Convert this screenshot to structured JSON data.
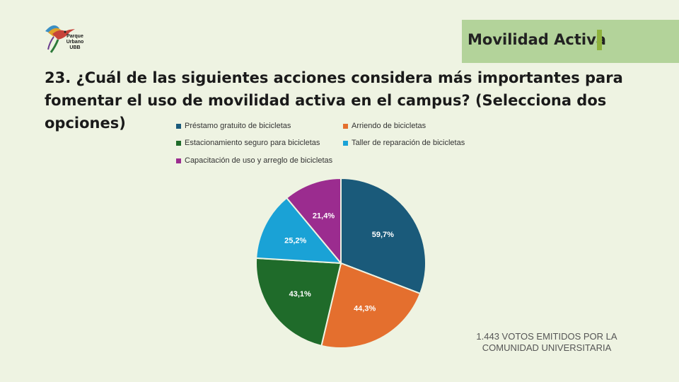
{
  "header": {
    "logo_lines": [
      "Parque",
      "Urbano",
      "UBB"
    ],
    "banner_title": "Movilidad Activa"
  },
  "question": "23. ¿Cuál de las siguientes acciones considera más importantes para fomentar el uso de movilidad activa en el campus? (Selecciona dos opciones)",
  "chart_data": {
    "type": "pie",
    "categories": [
      "Préstamo gratuito de bicicletas",
      "Arriendo de bicicletas",
      "Estacionamiento seguro para bicicletas",
      "Taller de reparación de bicicletas",
      "Capacitación de uso y arreglo de bicicletas"
    ],
    "values": [
      59.7,
      44.3,
      43.1,
      25.2,
      21.4
    ],
    "data_labels": [
      "59,7%",
      "44,3%",
      "43,1%",
      "25,2%",
      "21,4%"
    ],
    "colors": [
      "#1a5a7a",
      "#e46f2e",
      "#1f6b2a",
      "#1aa2d6",
      "#9b2c8f"
    ],
    "legend_position": "top",
    "title": ""
  },
  "footer": {
    "votes_line1": "1.443  VOTOS EMITIDOS POR LA",
    "votes_line2": "COMUNIDAD UNIVERSITARIA"
  }
}
